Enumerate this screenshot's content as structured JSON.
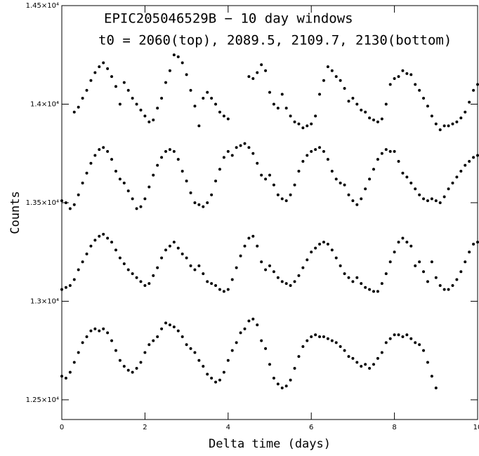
{
  "chart_data": {
    "type": "scatter",
    "title": "EPIC205046529B − 10 day windows",
    "subtitle": "t0 = 2060(top), 2089.5, 2109.7, 2130(bottom)",
    "x_label": "Delta time (days)",
    "y_label": "Counts",
    "xlim": [
      0,
      10
    ],
    "xticks": [
      0,
      2,
      4,
      6,
      8,
      10
    ],
    "ylim": [
      12400,
      14500
    ],
    "yticks": [
      {
        "value": 12500,
        "label": "1.25×10⁴"
      },
      {
        "value": 13000,
        "label": "1.3×10⁴"
      },
      {
        "value": 13500,
        "label": "1.35×10⁴"
      },
      {
        "value": 14000,
        "label": "1.4×10⁴"
      },
      {
        "value": 14500,
        "label": "1.45×10⁴"
      }
    ],
    "x": [
      0,
      0.1,
      0.2,
      0.3,
      0.4,
      0.5,
      0.6,
      0.7,
      0.8,
      0.9,
      1.0,
      1.1,
      1.2,
      1.3,
      1.4,
      1.5,
      1.6,
      1.7,
      1.8,
      1.9,
      2.0,
      2.1,
      2.2,
      2.3,
      2.4,
      2.5,
      2.6,
      2.7,
      2.8,
      2.9,
      3.0,
      3.1,
      3.2,
      3.3,
      3.4,
      3.5,
      3.6,
      3.7,
      3.8,
      3.9,
      4.0,
      4.1,
      4.2,
      4.3,
      4.4,
      4.5,
      4.6,
      4.7,
      4.8,
      4.9,
      5.0,
      5.1,
      5.2,
      5.3,
      5.4,
      5.5,
      5.6,
      5.7,
      5.8,
      5.9,
      6.0,
      6.1,
      6.2,
      6.3,
      6.4,
      6.5,
      6.6,
      6.7,
      6.8,
      6.9,
      7.0,
      7.1,
      7.2,
      7.3,
      7.4,
      7.5,
      7.6,
      7.7,
      7.8,
      7.9,
      8.0,
      8.1,
      8.2,
      8.3,
      8.4,
      8.5,
      8.6,
      8.7,
      8.8,
      8.9,
      9.0,
      9.1,
      9.2,
      9.3,
      9.4,
      9.5,
      9.6,
      9.7,
      9.8,
      9.9,
      10.0
    ],
    "series": [
      {
        "color": "#000000",
        "values": [
          null,
          null,
          null,
          13960,
          13985,
          14030,
          14070,
          14120,
          14160,
          14190,
          14210,
          14180,
          14140,
          14090,
          14000,
          14110,
          14070,
          14030,
          14000,
          13970,
          13940,
          13910,
          13920,
          13980,
          14030,
          14110,
          14170,
          14250,
          14240,
          14210,
          14150,
          14070,
          13990,
          13890,
          14030,
          14060,
          14030,
          14000,
          13960,
          13940,
          13925,
          null,
          null,
          null,
          null,
          14140,
          14130,
          14160,
          14200,
          14170,
          14060,
          14000,
          13980,
          14050,
          13980,
          13940,
          13910,
          13900,
          13880,
          13890,
          13900,
          13940,
          14050,
          14120,
          14190,
          14170,
          14140,
          14120,
          14080,
          14015,
          14030,
          14000,
          13970,
          13960,
          13930,
          13920,
          13910,
          13925,
          14000,
          14100,
          14130,
          14140,
          14170,
          14155,
          14150,
          14100,
          14070,
          14030,
          13990,
          13940,
          13900,
          13870,
          13890,
          13890,
          13900,
          13910,
          13930,
          13960,
          14010,
          14070,
          14100
        ]
      },
      {
        "color": "#000000",
        "values": [
          13510,
          13500,
          13470,
          13490,
          13540,
          13600,
          13650,
          13700,
          13740,
          13770,
          13780,
          13760,
          13720,
          13660,
          13620,
          13600,
          13560,
          13520,
          13470,
          13480,
          13520,
          13580,
          13640,
          13690,
          13730,
          13760,
          13770,
          13760,
          13720,
          13660,
          13610,
          13550,
          13500,
          13490,
          13480,
          13500,
          13540,
          13610,
          13670,
          13730,
          13760,
          13740,
          13780,
          13790,
          13800,
          13780,
          13750,
          13700,
          13640,
          13620,
          13640,
          13590,
          13540,
          13520,
          13510,
          13540,
          13590,
          13660,
          13710,
          13740,
          13760,
          13770,
          13780,
          13760,
          13720,
          13660,
          13620,
          13600,
          13590,
          13540,
          13510,
          13490,
          13520,
          13570,
          13620,
          13670,
          13720,
          13750,
          13770,
          13760,
          13760,
          13710,
          13650,
          13630,
          13600,
          13570,
          13540,
          13520,
          13510,
          13520,
          13510,
          13500,
          13530,
          13570,
          13600,
          13630,
          13660,
          13690,
          13710,
          13730,
          13740
        ]
      },
      {
        "color": "#000000",
        "values": [
          13060,
          13070,
          13080,
          13110,
          13160,
          13200,
          13240,
          13280,
          13310,
          13330,
          13340,
          13320,
          13300,
          13260,
          13220,
          13190,
          13160,
          13140,
          13120,
          13100,
          13080,
          13090,
          13130,
          13170,
          13220,
          13260,
          13280,
          13300,
          13270,
          13240,
          13220,
          13180,
          13160,
          13180,
          13140,
          13100,
          13090,
          13080,
          13060,
          13050,
          13060,
          13110,
          13170,
          13230,
          13280,
          13320,
          13330,
          13280,
          13200,
          13160,
          13180,
          13150,
          13120,
          13100,
          13090,
          13080,
          13100,
          13130,
          13170,
          13210,
          13250,
          13270,
          13290,
          13300,
          13290,
          13260,
          13220,
          13180,
          13140,
          13120,
          13100,
          13120,
          13090,
          13070,
          13060,
          13050,
          13050,
          13090,
          13140,
          13200,
          13250,
          13300,
          13320,
          13300,
          13280,
          13180,
          13200,
          13150,
          13100,
          13200,
          13120,
          13080,
          13060,
          13060,
          13080,
          13110,
          13150,
          13200,
          13250,
          13290,
          13300
        ]
      },
      {
        "color": "#000000",
        "values": [
          12620,
          12610,
          12640,
          12690,
          12740,
          12790,
          12820,
          12850,
          12860,
          12850,
          12860,
          12840,
          12800,
          12750,
          12700,
          12670,
          12650,
          12640,
          12660,
          12690,
          12740,
          12780,
          12800,
          12820,
          12860,
          12890,
          12880,
          12870,
          12850,
          12820,
          12780,
          12760,
          12740,
          12700,
          12670,
          12630,
          12610,
          12590,
          12600,
          12640,
          12700,
          12750,
          12790,
          12840,
          12860,
          12900,
          12910,
          12880,
          12800,
          12760,
          12680,
          12610,
          12580,
          12560,
          12570,
          12600,
          12660,
          12720,
          12770,
          12800,
          12820,
          12830,
          12820,
          12820,
          12810,
          12800,
          12790,
          12770,
          12750,
          12720,
          12710,
          12690,
          12670,
          12680,
          12660,
          12680,
          12710,
          12740,
          12790,
          12810,
          12830,
          12830,
          12820,
          12830,
          12810,
          12790,
          12780,
          12750,
          12690,
          12620,
          12560,
          null,
          null,
          null,
          null,
          null,
          null,
          null,
          null,
          null,
          null
        ]
      }
    ]
  }
}
